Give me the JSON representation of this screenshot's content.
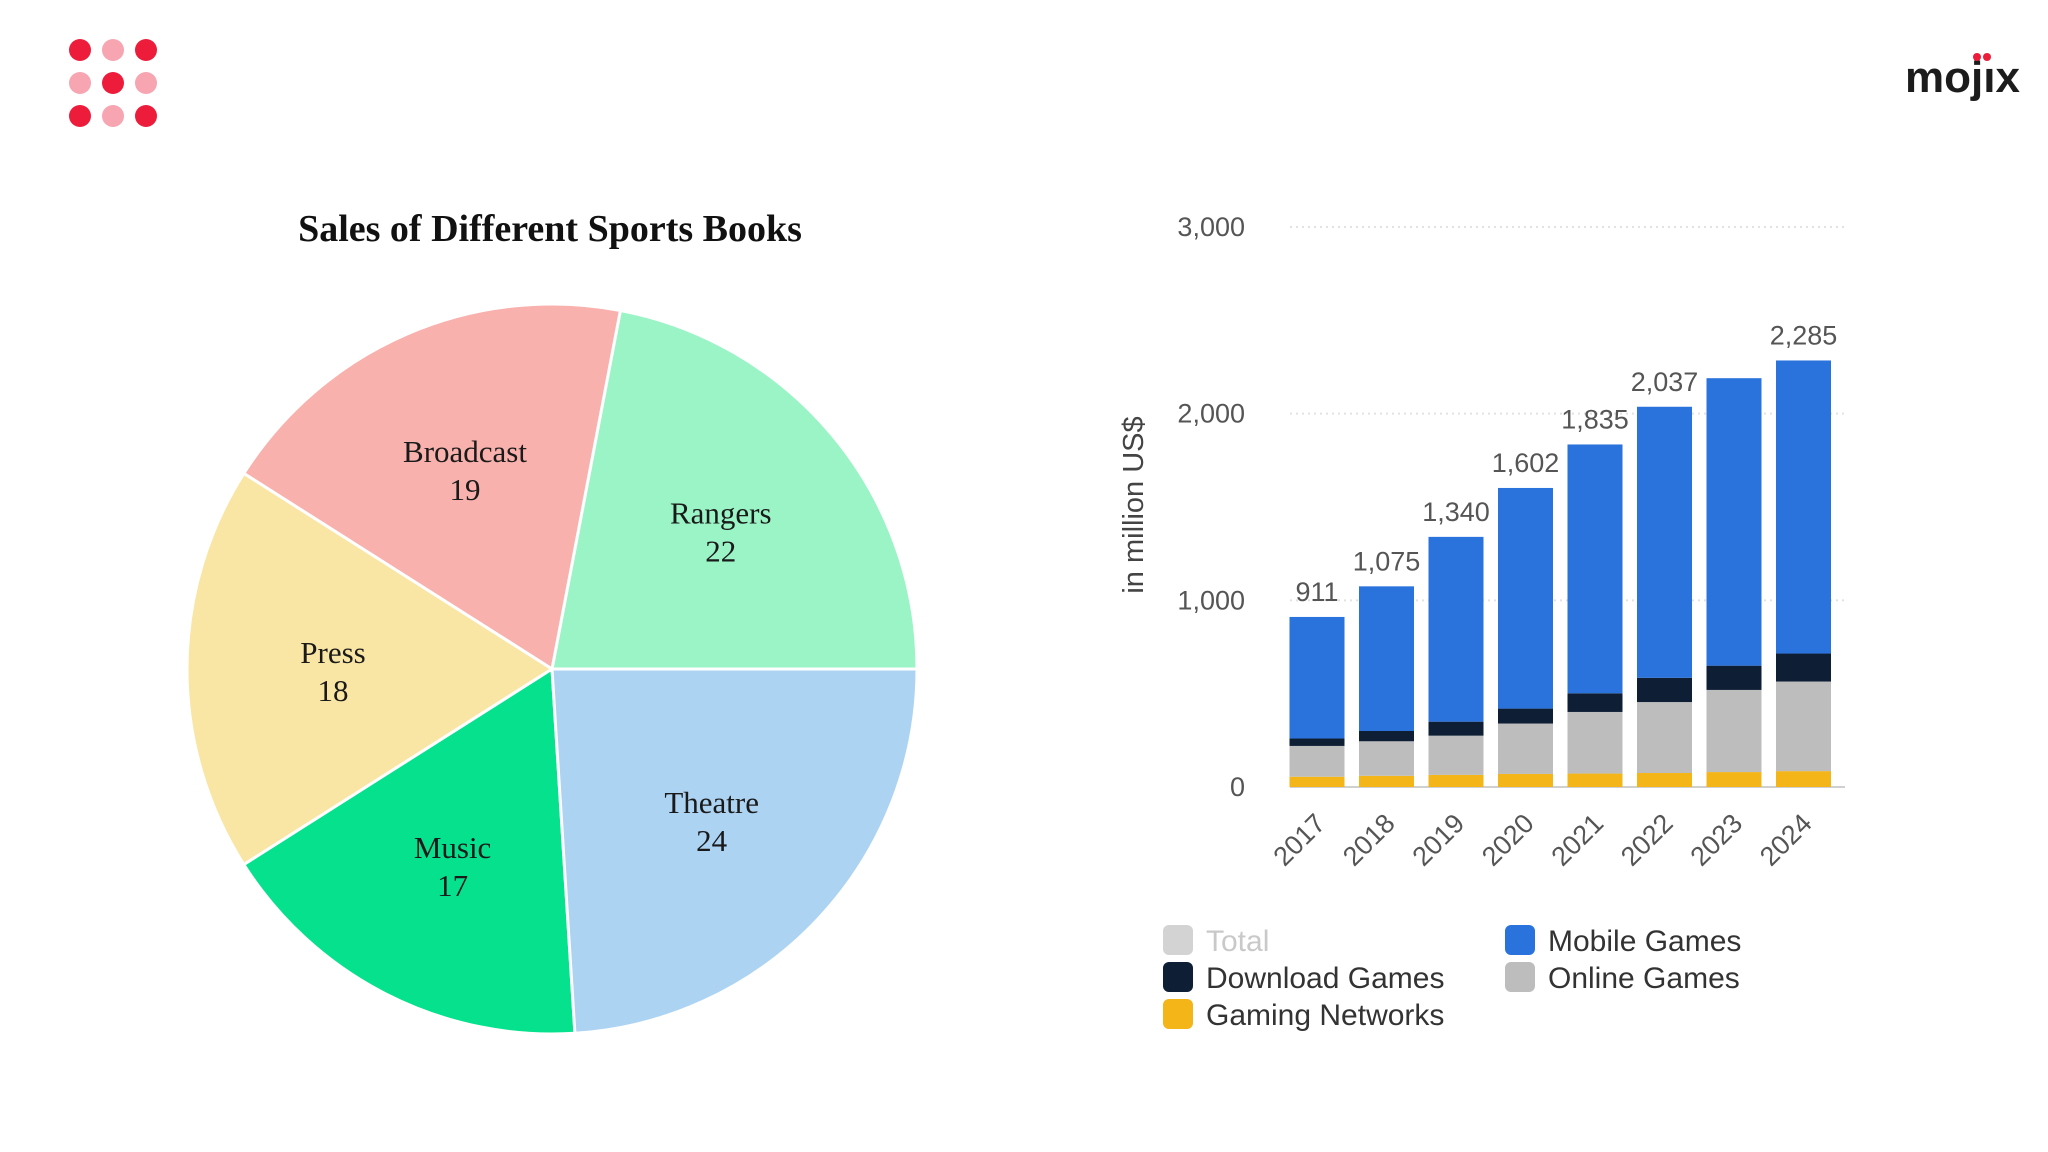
{
  "brand": {
    "name_prefix": "moj",
    "name_i": "ı",
    "name_suffix": "x",
    "dot_color": "#ee1c3b",
    "dot_light_color": "#f6a5b1"
  },
  "chart_data": [
    {
      "type": "pie",
      "title": "Sales of Different Sports Books",
      "slices": [
        {
          "label": "Rangers",
          "value": 22,
          "color": "#9af4c5"
        },
        {
          "label": "Broadcast",
          "value": 19,
          "color": "#f8b1ad"
        },
        {
          "label": "Press",
          "value": 18,
          "color": "#f9e6a5"
        },
        {
          "label": "Music",
          "value": 17,
          "color": "#06e18e"
        },
        {
          "label": "Theatre",
          "value": 24,
          "color": "#add3f3"
        }
      ]
    },
    {
      "type": "bar",
      "stacked": true,
      "title": "",
      "xlabel": "",
      "ylabel": "in million US$",
      "ylim": [
        0,
        3000
      ],
      "yticks": [
        0,
        1000,
        2000,
        3000
      ],
      "ytick_labels": [
        "0",
        "1,000",
        "2,000",
        "3,000"
      ],
      "grid": true,
      "categories": [
        "2017",
        "2018",
        "2019",
        "2020",
        "2021",
        "2022",
        "2023",
        "2024"
      ],
      "totals": [
        911,
        1075,
        1340,
        1602,
        1835,
        2037,
        2190,
        2285
      ],
      "total_labels": [
        "911",
        "1,075",
        "1,340",
        "1,602",
        "1,835",
        "2,037",
        "",
        "2,285"
      ],
      "series": [
        {
          "name": "Gaming Networks",
          "color": "#f4b518",
          "values": [
            55,
            60,
            65,
            70,
            72,
            75,
            80,
            85
          ]
        },
        {
          "name": "Online Games",
          "color": "#bdbdbd",
          "values": [
            165,
            185,
            210,
            270,
            330,
            380,
            440,
            480
          ]
        },
        {
          "name": "Download Games",
          "color": "#0e1e35",
          "values": [
            40,
            55,
            75,
            80,
            100,
            130,
            130,
            150
          ]
        },
        {
          "name": "Mobile Games",
          "color": "#2a73dd",
          "values": [
            651,
            775,
            990,
            1182,
            1333,
            1452,
            1540,
            1570
          ]
        }
      ],
      "legend": [
        {
          "label": "Total",
          "color": "#d3d3d3",
          "muted": true
        },
        {
          "label": "Download Games",
          "color": "#0e1e35",
          "muted": false
        },
        {
          "label": "Gaming Networks",
          "color": "#f4b518",
          "muted": false
        },
        {
          "label": "Mobile Games",
          "color": "#2a73dd",
          "muted": false
        },
        {
          "label": "Online Games",
          "color": "#bdbdbd",
          "muted": false
        }
      ]
    }
  ]
}
